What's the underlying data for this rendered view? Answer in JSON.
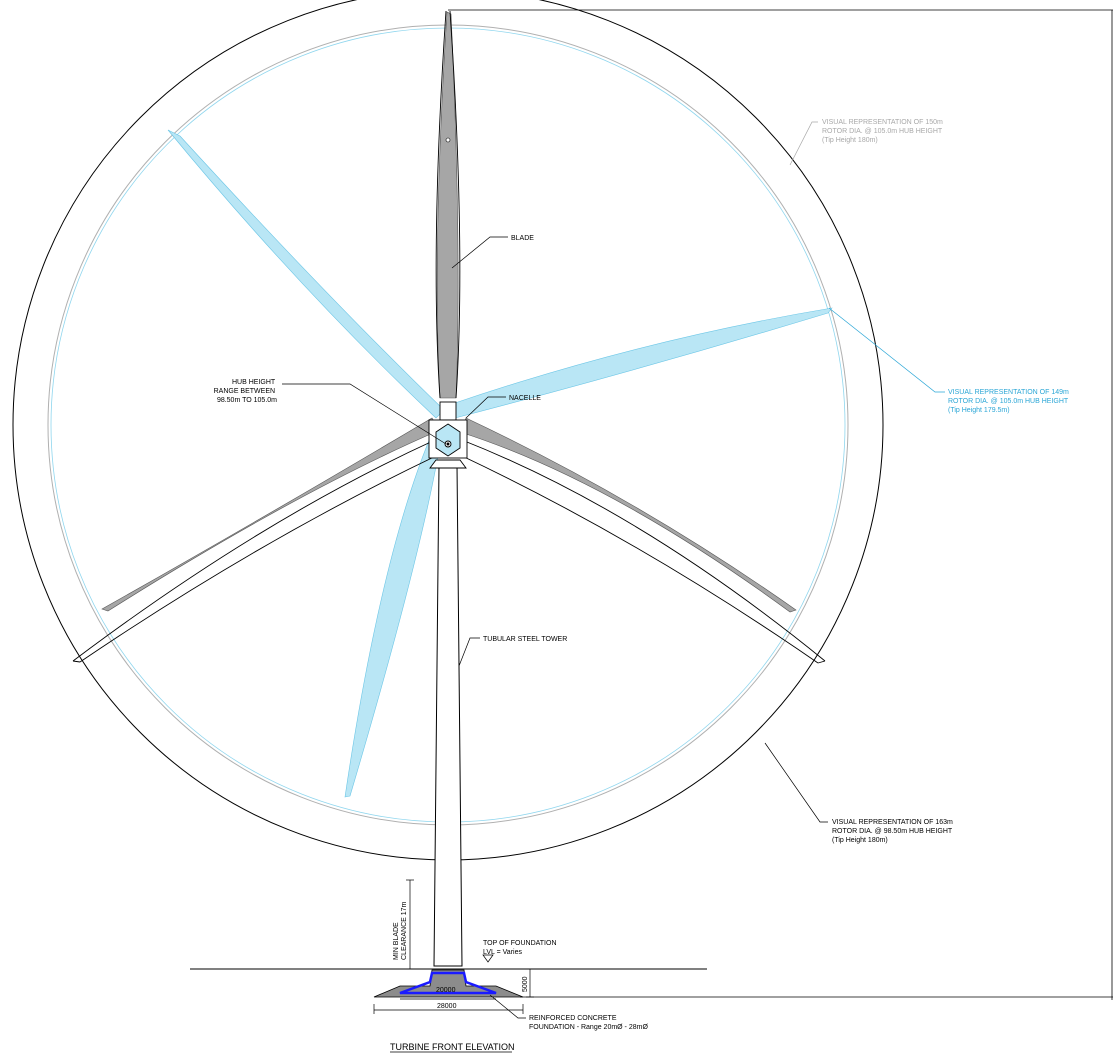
{
  "drawing_title": "TURBINE FRONT ELEVATION",
  "labels": {
    "blade": "BLADE",
    "nacelle": "NACELLE",
    "hub_height": [
      "HUB HEIGHT",
      "RANGE BETWEEN",
      "98.50m TO 105.0m"
    ],
    "tower": "TUBULAR STEEL TOWER",
    "rotor_150": [
      "VISUAL REPRESENTATION OF 150m",
      "ROTOR DIA. @ 105.0m HUB HEIGHT",
      "(Tip Height 180m)"
    ],
    "rotor_149": [
      "VISUAL REPRESENTATION OF 149m",
      "ROTOR DIA. @ 105.0m HUB HEIGHT",
      "(Tip Height 179.5m)"
    ],
    "rotor_163": [
      "VISUAL REPRESENTATION OF 163m",
      "ROTOR DIA. @ 98.50m HUB HEIGHT",
      "(Tip Height 180m)"
    ],
    "blade_clearance": [
      "MIN BLADE",
      "CLEARANCE 17m"
    ],
    "top_of_foundation": [
      "TOP OF FOUNDATION",
      "LVL = Varies"
    ],
    "foundation": [
      "REINFORCED CONCRETE",
      "FOUNDATION - Range 20mØ - 28mØ"
    ]
  },
  "dimensions": {
    "inner_width": "20000",
    "outer_width": "28000",
    "depth": "5000"
  },
  "colors": {
    "blade_grey": "#a6a6a6",
    "blade_blue": "#b9e6f5",
    "leader_blue": "#2aa6d6",
    "leader_grey": "#a8a8a8",
    "foundation_blue": "#1a1aff",
    "foundation_fill": "#8c8c8c"
  }
}
